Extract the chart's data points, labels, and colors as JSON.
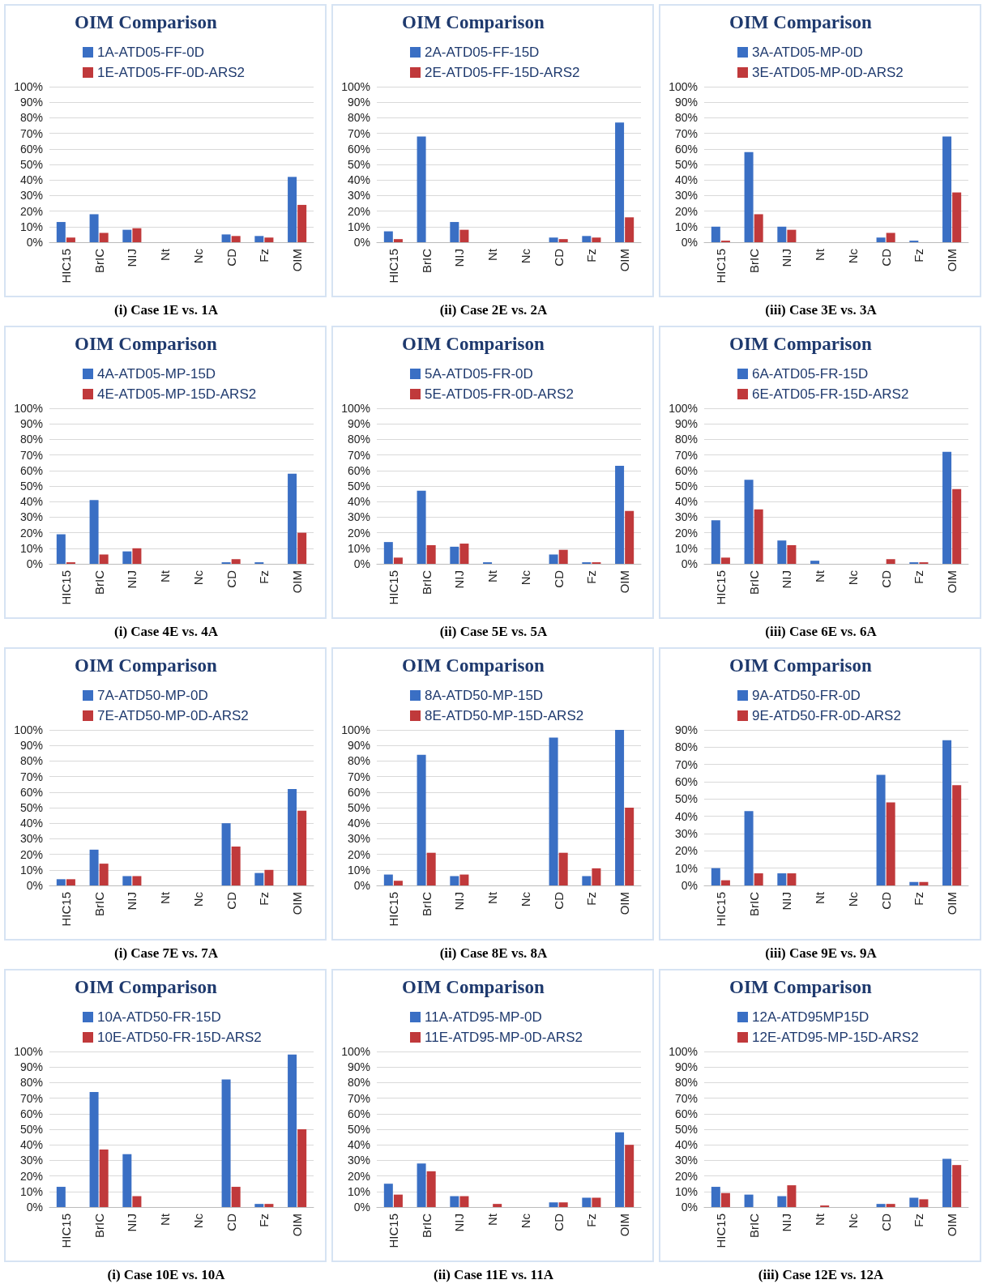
{
  "chart_data": [
    {
      "type": "bar",
      "title": "OIM Comparison",
      "xlabel": "(i) Case 1E vs. 1A",
      "categories": [
        "HIC15",
        "BrIC",
        "NIJ",
        "Nt",
        "Nc",
        "CD",
        "Fz",
        "OIM"
      ],
      "series": [
        {
          "name": "1A-ATD05-FF-0D",
          "color": "#3a6fc4",
          "values": [
            13,
            18,
            8,
            0,
            0,
            5,
            4,
            42
          ]
        },
        {
          "name": "1E-ATD05-FF-0D-ARS2",
          "color": "#c0393b",
          "values": [
            3,
            6,
            9,
            0,
            0,
            4,
            3,
            24
          ]
        }
      ],
      "ylim": [
        0,
        100
      ],
      "yticks": [
        {
          "value": 0,
          "label": "0%"
        },
        {
          "value": 10,
          "label": "10%"
        },
        {
          "value": 20,
          "label": "20%"
        },
        {
          "value": 30,
          "label": "30%"
        },
        {
          "value": 40,
          "label": "40%"
        },
        {
          "value": 50,
          "label": "50%"
        },
        {
          "value": 60,
          "label": "60%"
        },
        {
          "value": 70,
          "label": "70%"
        },
        {
          "value": 80,
          "label": "80%"
        },
        {
          "value": 90,
          "label": "90%"
        },
        {
          "value": 100,
          "label": "100%"
        }
      ],
      "grid": "y",
      "legend": "top"
    },
    {
      "type": "bar",
      "title": "OIM Comparison",
      "xlabel": "(ii) Case 2E vs. 2A",
      "categories": [
        "HIC15",
        "BrIC",
        "NIJ",
        "Nt",
        "Nc",
        "CD",
        "Fz",
        "OIM"
      ],
      "series": [
        {
          "name": "2A-ATD05-FF-15D",
          "color": "#3a6fc4",
          "values": [
            7,
            68,
            13,
            0,
            0,
            3,
            4,
            77
          ]
        },
        {
          "name": "2E-ATD05-FF-15D-ARS2",
          "color": "#c0393b",
          "values": [
            2,
            0,
            8,
            0,
            0,
            2,
            3,
            16
          ]
        }
      ],
      "ylim": [
        0,
        100
      ],
      "yticks": [
        {
          "value": 0,
          "label": "0%"
        },
        {
          "value": 10,
          "label": "10%"
        },
        {
          "value": 20,
          "label": "20%"
        },
        {
          "value": 30,
          "label": "30%"
        },
        {
          "value": 40,
          "label": "40%"
        },
        {
          "value": 50,
          "label": "50%"
        },
        {
          "value": 60,
          "label": "60%"
        },
        {
          "value": 70,
          "label": "70%"
        },
        {
          "value": 80,
          "label": "80%"
        },
        {
          "value": 90,
          "label": "90%"
        },
        {
          "value": 100,
          "label": "100%"
        }
      ],
      "grid": "y",
      "legend": "top"
    },
    {
      "type": "bar",
      "title": "OIM Comparison",
      "xlabel": "(iii) Case 3E vs. 3A",
      "categories": [
        "HIC15",
        "BrIC",
        "NIJ",
        "Nt",
        "Nc",
        "CD",
        "Fz",
        "OIM"
      ],
      "series": [
        {
          "name": "3A-ATD05-MP-0D",
          "color": "#3a6fc4",
          "values": [
            10,
            58,
            10,
            0,
            0,
            3,
            1,
            68
          ]
        },
        {
          "name": "3E-ATD05-MP-0D-ARS2",
          "color": "#c0393b",
          "values": [
            1,
            18,
            8,
            0,
            0,
            6,
            0,
            32
          ]
        }
      ],
      "ylim": [
        0,
        100
      ],
      "yticks": [
        {
          "value": 0,
          "label": "0%"
        },
        {
          "value": 10,
          "label": "10%"
        },
        {
          "value": 20,
          "label": "20%"
        },
        {
          "value": 30,
          "label": "30%"
        },
        {
          "value": 40,
          "label": "40%"
        },
        {
          "value": 50,
          "label": "50%"
        },
        {
          "value": 60,
          "label": "60%"
        },
        {
          "value": 70,
          "label": "70%"
        },
        {
          "value": 80,
          "label": "80%"
        },
        {
          "value": 90,
          "label": "90%"
        },
        {
          "value": 100,
          "label": "100%"
        }
      ],
      "grid": "y",
      "legend": "top"
    },
    {
      "type": "bar",
      "title": "OIM Comparison",
      "xlabel": "(i) Case 4E vs. 4A",
      "categories": [
        "HIC15",
        "BrIC",
        "NIJ",
        "Nt",
        "Nc",
        "CD",
        "Fz",
        "OIM"
      ],
      "series": [
        {
          "name": "4A-ATD05-MP-15D",
          "color": "#3a6fc4",
          "values": [
            19,
            41,
            8,
            0,
            0,
            1,
            1,
            58
          ]
        },
        {
          "name": "4E-ATD05-MP-15D-ARS2",
          "color": "#c0393b",
          "values": [
            1,
            6,
            10,
            0,
            0,
            3,
            0,
            20
          ]
        }
      ],
      "ylim": [
        0,
        100
      ],
      "yticks": [
        {
          "value": 0,
          "label": "0%"
        },
        {
          "value": 10,
          "label": "10%"
        },
        {
          "value": 20,
          "label": "20%"
        },
        {
          "value": 30,
          "label": "30%"
        },
        {
          "value": 40,
          "label": "40%"
        },
        {
          "value": 50,
          "label": "50%"
        },
        {
          "value": 60,
          "label": "60%"
        },
        {
          "value": 70,
          "label": "70%"
        },
        {
          "value": 80,
          "label": "80%"
        },
        {
          "value": 90,
          "label": "90%"
        },
        {
          "value": 100,
          "label": "100%"
        }
      ],
      "grid": "y",
      "legend": "top"
    },
    {
      "type": "bar",
      "title": "OIM Comparison",
      "xlabel": "(ii) Case 5E vs. 5A",
      "categories": [
        "HIC15",
        "BrIC",
        "NIJ",
        "Nt",
        "Nc",
        "CD",
        "Fz",
        "OIM"
      ],
      "series": [
        {
          "name": "5A-ATD05-FR-0D",
          "color": "#3a6fc4",
          "values": [
            14,
            47,
            11,
            1,
            0,
            6,
            1,
            63
          ]
        },
        {
          "name": "5E-ATD05-FR-0D-ARS2",
          "color": "#c0393b",
          "values": [
            4,
            12,
            13,
            0,
            0,
            9,
            1,
            34
          ]
        }
      ],
      "ylim": [
        0,
        100
      ],
      "yticks": [
        {
          "value": 0,
          "label": "0%"
        },
        {
          "value": 10,
          "label": "10%"
        },
        {
          "value": 20,
          "label": "20%"
        },
        {
          "value": 30,
          "label": "30%"
        },
        {
          "value": 40,
          "label": "40%"
        },
        {
          "value": 50,
          "label": "50%"
        },
        {
          "value": 60,
          "label": "60%"
        },
        {
          "value": 70,
          "label": "70%"
        },
        {
          "value": 80,
          "label": "80%"
        },
        {
          "value": 90,
          "label": "90%"
        },
        {
          "value": 100,
          "label": "100%"
        }
      ],
      "grid": "y",
      "legend": "top"
    },
    {
      "type": "bar",
      "title": "OIM Comparison",
      "xlabel": "(iii) Case 6E vs. 6A",
      "categories": [
        "HIC15",
        "BrIC",
        "NIJ",
        "Nt",
        "Nc",
        "CD",
        "Fz",
        "OIM"
      ],
      "series": [
        {
          "name": "6A-ATD05-FR-15D",
          "color": "#3a6fc4",
          "values": [
            28,
            54,
            15,
            2,
            0,
            0,
            1,
            72
          ]
        },
        {
          "name": "6E-ATD05-FR-15D-ARS2",
          "color": "#c0393b",
          "values": [
            4,
            35,
            12,
            0,
            0,
            3,
            1,
            48
          ]
        }
      ],
      "ylim": [
        0,
        100
      ],
      "yticks": [
        {
          "value": 0,
          "label": "0%"
        },
        {
          "value": 10,
          "label": "10%"
        },
        {
          "value": 20,
          "label": "20%"
        },
        {
          "value": 30,
          "label": "30%"
        },
        {
          "value": 40,
          "label": "40%"
        },
        {
          "value": 50,
          "label": "50%"
        },
        {
          "value": 60,
          "label": "60%"
        },
        {
          "value": 70,
          "label": "70%"
        },
        {
          "value": 80,
          "label": "80%"
        },
        {
          "value": 90,
          "label": "90%"
        },
        {
          "value": 100,
          "label": "100%"
        }
      ],
      "grid": "y",
      "legend": "top"
    },
    {
      "type": "bar",
      "title": "OIM Comparison",
      "xlabel": "(i) Case 7E vs. 7A",
      "categories": [
        "HIC15",
        "BrIC",
        "NIJ",
        "Nt",
        "Nc",
        "CD",
        "Fz",
        "OIM"
      ],
      "series": [
        {
          "name": "7A-ATD50-MP-0D",
          "color": "#3a6fc4",
          "values": [
            4,
            23,
            6,
            0,
            0,
            40,
            8,
            62
          ]
        },
        {
          "name": "7E-ATD50-MP-0D-ARS2",
          "color": "#c0393b",
          "values": [
            4,
            14,
            6,
            0,
            0,
            25,
            10,
            48
          ]
        }
      ],
      "ylim": [
        0,
        100
      ],
      "yticks": [
        {
          "value": 0,
          "label": "0%"
        },
        {
          "value": 10,
          "label": "10%"
        },
        {
          "value": 20,
          "label": "20%"
        },
        {
          "value": 30,
          "label": "30%"
        },
        {
          "value": 40,
          "label": "40%"
        },
        {
          "value": 50,
          "label": "50%"
        },
        {
          "value": 60,
          "label": "60%"
        },
        {
          "value": 70,
          "label": "70%"
        },
        {
          "value": 80,
          "label": "80%"
        },
        {
          "value": 90,
          "label": "90%"
        },
        {
          "value": 100,
          "label": "100%"
        }
      ],
      "grid": "y",
      "legend": "top"
    },
    {
      "type": "bar",
      "title": "OIM Comparison",
      "xlabel": "(ii) Case 8E vs. 8A",
      "categories": [
        "HIC15",
        "BrIC",
        "NIJ",
        "Nt",
        "Nc",
        "CD",
        "Fz",
        "OIM"
      ],
      "series": [
        {
          "name": "8A-ATD50-MP-15D",
          "color": "#3a6fc4",
          "values": [
            7,
            84,
            6,
            0,
            0,
            95,
            6,
            100
          ]
        },
        {
          "name": "8E-ATD50-MP-15D-ARS2",
          "color": "#c0393b",
          "values": [
            3,
            21,
            7,
            0,
            0,
            21,
            11,
            50
          ]
        }
      ],
      "ylim": [
        0,
        100
      ],
      "yticks": [
        {
          "value": 0,
          "label": "0%"
        },
        {
          "value": 10,
          "label": "10%"
        },
        {
          "value": 20,
          "label": "20%"
        },
        {
          "value": 30,
          "label": "30%"
        },
        {
          "value": 40,
          "label": "40%"
        },
        {
          "value": 50,
          "label": "50%"
        },
        {
          "value": 60,
          "label": "60%"
        },
        {
          "value": 70,
          "label": "70%"
        },
        {
          "value": 80,
          "label": "80%"
        },
        {
          "value": 90,
          "label": "90%"
        },
        {
          "value": 100,
          "label": "100%"
        }
      ],
      "grid": "y",
      "legend": "top"
    },
    {
      "type": "bar",
      "title": "OIM Comparison",
      "xlabel": "(iii) Case 9E vs. 9A",
      "categories": [
        "HIC15",
        "BrIC",
        "NIJ",
        "Nt",
        "Nc",
        "CD",
        "Fz",
        "OIM"
      ],
      "series": [
        {
          "name": "9A-ATD50-FR-0D",
          "color": "#3a6fc4",
          "values": [
            10,
            43,
            7,
            0,
            0,
            64,
            2,
            84
          ]
        },
        {
          "name": "9E-ATD50-FR-0D-ARS2",
          "color": "#c0393b",
          "values": [
            3,
            7,
            7,
            0,
            0,
            48,
            2,
            58
          ]
        }
      ],
      "ylim": [
        0,
        90
      ],
      "yticks": [
        {
          "value": 0,
          "label": "0%"
        },
        {
          "value": 10,
          "label": "10%"
        },
        {
          "value": 20,
          "label": "20%"
        },
        {
          "value": 30,
          "label": "30%"
        },
        {
          "value": 40,
          "label": "40%"
        },
        {
          "value": 50,
          "label": "50%"
        },
        {
          "value": 60,
          "label": "60%"
        },
        {
          "value": 70,
          "label": "70%"
        },
        {
          "value": 80,
          "label": "80%"
        },
        {
          "value": 90,
          "label": "90%"
        }
      ],
      "grid": "y",
      "legend": "top"
    },
    {
      "type": "bar",
      "title": "OIM Comparison",
      "xlabel": "(i) Case 10E vs. 10A",
      "categories": [
        "HIC15",
        "BrIC",
        "NIJ",
        "Nt",
        "Nc",
        "CD",
        "Fz",
        "OIM"
      ],
      "series": [
        {
          "name": "10A-ATD50-FR-15D",
          "color": "#3a6fc4",
          "values": [
            13,
            74,
            34,
            0,
            0,
            82,
            2,
            98
          ]
        },
        {
          "name": "10E-ATD50-FR-15D-ARS2",
          "color": "#c0393b",
          "values": [
            0,
            37,
            7,
            0,
            0,
            13,
            2,
            50
          ]
        }
      ],
      "ylim": [
        0,
        100
      ],
      "yticks": [
        {
          "value": 0,
          "label": "0%"
        },
        {
          "value": 10,
          "label": "10%"
        },
        {
          "value": 20,
          "label": "20%"
        },
        {
          "value": 30,
          "label": "30%"
        },
        {
          "value": 40,
          "label": "40%"
        },
        {
          "value": 50,
          "label": "50%"
        },
        {
          "value": 60,
          "label": "60%"
        },
        {
          "value": 70,
          "label": "70%"
        },
        {
          "value": 80,
          "label": "80%"
        },
        {
          "value": 90,
          "label": "90%"
        },
        {
          "value": 100,
          "label": "100%"
        }
      ],
      "grid": "y",
      "legend": "top"
    },
    {
      "type": "bar",
      "title": "OIM Comparison",
      "xlabel": "(ii) Case 11E vs. 11A",
      "categories": [
        "HIC15",
        "BrIC",
        "NIJ",
        "Nt",
        "Nc",
        "CD",
        "Fz",
        "OIM"
      ],
      "series": [
        {
          "name": "11A-ATD95-MP-0D",
          "color": "#3a6fc4",
          "values": [
            15,
            28,
            7,
            0,
            0,
            3,
            6,
            48
          ]
        },
        {
          "name": "11E-ATD95-MP-0D-ARS2",
          "color": "#c0393b",
          "values": [
            8,
            23,
            7,
            2,
            0,
            3,
            6,
            40
          ]
        }
      ],
      "ylim": [
        0,
        100
      ],
      "yticks": [
        {
          "value": 0,
          "label": "0%"
        },
        {
          "value": 10,
          "label": "10%"
        },
        {
          "value": 20,
          "label": "20%"
        },
        {
          "value": 30,
          "label": "30%"
        },
        {
          "value": 40,
          "label": "40%"
        },
        {
          "value": 50,
          "label": "50%"
        },
        {
          "value": 60,
          "label": "60%"
        },
        {
          "value": 70,
          "label": "70%"
        },
        {
          "value": 80,
          "label": "80%"
        },
        {
          "value": 90,
          "label": "90%"
        },
        {
          "value": 100,
          "label": "100%"
        }
      ],
      "grid": "y",
      "legend": "top"
    },
    {
      "type": "bar",
      "title": "OIM Comparison",
      "xlabel": "(iii) Case 12E vs. 12A",
      "categories": [
        "HIC15",
        "BrIC",
        "NIJ",
        "Nt",
        "Nc",
        "CD",
        "Fz",
        "OIM"
      ],
      "series": [
        {
          "name": "12A-ATD95MP15D",
          "color": "#3a6fc4",
          "values": [
            13,
            8,
            7,
            0,
            0,
            2,
            6,
            31
          ]
        },
        {
          "name": "12E-ATD95-MP-15D-ARS2",
          "color": "#c0393b",
          "values": [
            9,
            0,
            14,
            1,
            0,
            2,
            5,
            27
          ]
        }
      ],
      "ylim": [
        0,
        100
      ],
      "yticks": [
        {
          "value": 0,
          "label": "0%"
        },
        {
          "value": 10,
          "label": "10%"
        },
        {
          "value": 20,
          "label": "20%"
        },
        {
          "value": 30,
          "label": "30%"
        },
        {
          "value": 40,
          "label": "40%"
        },
        {
          "value": 50,
          "label": "50%"
        },
        {
          "value": 60,
          "label": "60%"
        },
        {
          "value": 70,
          "label": "70%"
        },
        {
          "value": 80,
          "label": "80%"
        },
        {
          "value": 90,
          "label": "90%"
        },
        {
          "value": 100,
          "label": "100%"
        }
      ],
      "grid": "y",
      "legend": "top"
    }
  ]
}
